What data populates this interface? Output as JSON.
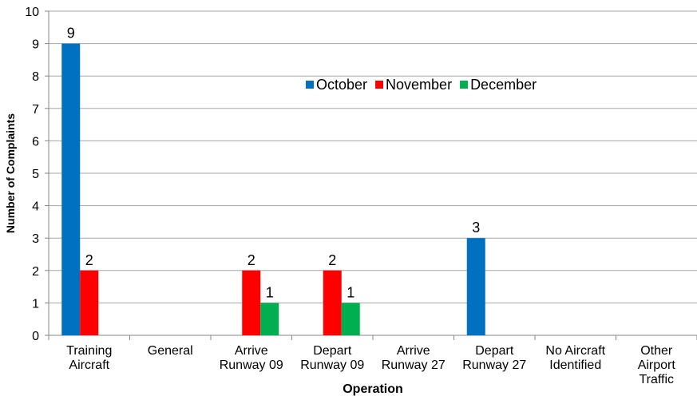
{
  "chart_data": {
    "type": "bar",
    "y_label": "Number of Complaints",
    "x_label": "Operation",
    "categories": [
      "Training\nAircraft",
      "General",
      "Arrive\nRunway 09",
      "Depart\nRunway 09",
      "Arrive\nRunway 27",
      "Depart\nRunway 27",
      "No Aircraft\nIdentified",
      "Other\nAirport\nTraffic"
    ],
    "series": [
      {
        "name": "October",
        "color": "#0070c0",
        "values": [
          9,
          null,
          null,
          null,
          null,
          3,
          null,
          null
        ]
      },
      {
        "name": "November",
        "color": "#ff0000",
        "values": [
          2,
          null,
          2,
          2,
          null,
          null,
          null,
          null
        ]
      },
      {
        "name": "December",
        "color": "#00b050",
        "values": [
          null,
          null,
          1,
          1,
          null,
          null,
          null,
          null
        ]
      }
    ],
    "ylim": [
      0,
      10
    ],
    "yticks": [
      0,
      1,
      2,
      3,
      4,
      5,
      6,
      7,
      8,
      9,
      10
    ],
    "grid": true
  }
}
